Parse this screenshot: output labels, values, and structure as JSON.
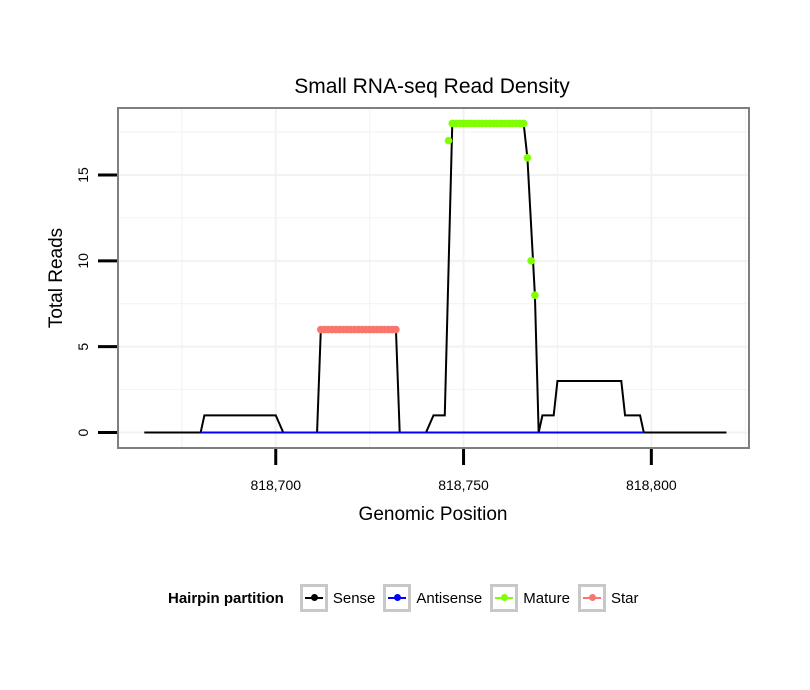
{
  "chart_data": {
    "type": "line",
    "title": "Small RNA-seq Read Density",
    "xlabel": "Genomic Position",
    "ylabel": "Total Reads",
    "xlim": [
      818658,
      818826
    ],
    "ylim": [
      -0.9,
      18.9
    ],
    "x_ticks": [
      818700,
      818750,
      818800
    ],
    "x_tick_labels": [
      "818,700",
      "818,750",
      "818,800"
    ],
    "y_ticks": [
      0,
      5,
      10,
      15
    ],
    "y_tick_labels": [
      "0",
      "5",
      "10",
      "15"
    ],
    "grid": true,
    "legend_position": "bottom",
    "series": [
      {
        "name": "Sense",
        "color": "#000000",
        "kind": "line",
        "x": [
          818665,
          818680,
          818681,
          818700,
          818702,
          818711,
          818712,
          818732,
          818733,
          818740,
          818742,
          818745,
          818747,
          818766,
          818767,
          818769,
          818770,
          818771,
          818772,
          818774,
          818775,
          818792,
          818793,
          818797,
          818798,
          818820
        ],
        "y": [
          0,
          0,
          1,
          1,
          0,
          0,
          6,
          6,
          0,
          0,
          1,
          1,
          18,
          18,
          16,
          8,
          0,
          1,
          1,
          1,
          3,
          3,
          1,
          1,
          0,
          0
        ]
      },
      {
        "name": "Antisense",
        "color": "#0000ff",
        "kind": "line",
        "x": [
          818680,
          818798
        ],
        "y": [
          0,
          0
        ]
      },
      {
        "name": "Mature",
        "color": "#7fff00",
        "kind": "points",
        "x": [
          818747,
          818748,
          818749,
          818750,
          818751,
          818752,
          818753,
          818754,
          818755,
          818756,
          818757,
          818758,
          818759,
          818760,
          818761,
          818762,
          818763,
          818764,
          818765,
          818766,
          818746,
          818767,
          818768,
          818769
        ],
        "y": [
          18,
          18,
          18,
          18,
          18,
          18,
          18,
          18,
          18,
          18,
          18,
          18,
          18,
          18,
          18,
          18,
          18,
          18,
          18,
          18,
          17,
          16,
          10,
          8
        ]
      },
      {
        "name": "Star",
        "color": "#f8766d",
        "kind": "points",
        "x": [
          818712,
          818713,
          818714,
          818715,
          818716,
          818717,
          818718,
          818719,
          818720,
          818721,
          818722,
          818723,
          818724,
          818725,
          818726,
          818727,
          818728,
          818729,
          818730,
          818731,
          818732
        ],
        "y": [
          6,
          6,
          6,
          6,
          6,
          6,
          6,
          6,
          6,
          6,
          6,
          6,
          6,
          6,
          6,
          6,
          6,
          6,
          6,
          6,
          6
        ]
      }
    ]
  },
  "legend": {
    "title": "Hairpin partition",
    "items": [
      {
        "label": "Sense",
        "color": "#000000"
      },
      {
        "label": "Antisense",
        "color": "#0000ff"
      },
      {
        "label": "Mature",
        "color": "#7fff00"
      },
      {
        "label": "Star",
        "color": "#f8766d"
      }
    ]
  }
}
